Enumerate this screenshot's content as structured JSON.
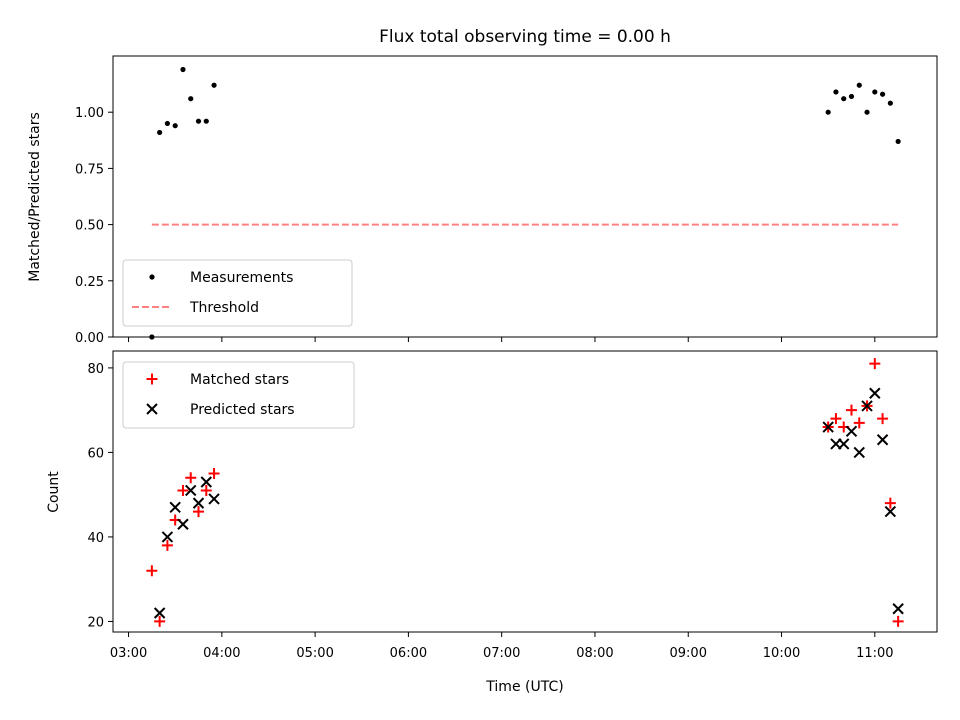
{
  "chart_data": [
    {
      "type": "scatter",
      "title": "Flux total observing time = 0.00 h",
      "xlabel": "",
      "ylabel": "Matched/Predicted stars",
      "xlim": [
        "02:50",
        "11:40"
      ],
      "ylim": [
        0,
        1.25
      ],
      "x_ticks": [
        "03:00",
        "04:00",
        "05:00",
        "06:00",
        "07:00",
        "08:00",
        "09:00",
        "10:00",
        "11:00"
      ],
      "y_ticks": [
        "0.00",
        "0.25",
        "0.50",
        "0.75",
        "1.00"
      ],
      "series": [
        {
          "name": "Measurements",
          "marker": "dot",
          "color": "#000000",
          "points": [
            [
              "03:15",
              0.0
            ],
            [
              "03:20",
              0.91
            ],
            [
              "03:25",
              0.95
            ],
            [
              "03:30",
              0.94
            ],
            [
              "03:35",
              1.19
            ],
            [
              "03:40",
              1.06
            ],
            [
              "03:45",
              0.96
            ],
            [
              "03:50",
              0.96
            ],
            [
              "03:55",
              1.12
            ],
            [
              "10:30",
              1.0
            ],
            [
              "10:35",
              1.09
            ],
            [
              "10:40",
              1.06
            ],
            [
              "10:45",
              1.07
            ],
            [
              "10:50",
              1.12
            ],
            [
              "10:55",
              1.0
            ],
            [
              "11:00",
              1.09
            ],
            [
              "11:05",
              1.08
            ],
            [
              "11:10",
              1.04
            ],
            [
              "11:15",
              0.87
            ]
          ]
        },
        {
          "name": "Threshold",
          "marker": "dashed-line",
          "color": "#ff8080",
          "points": [
            [
              "03:15",
              0.5
            ],
            [
              "11:15",
              0.5
            ]
          ]
        }
      ],
      "legend": {
        "position": "lower-left",
        "entries": [
          "Measurements",
          "Threshold"
        ]
      }
    },
    {
      "type": "scatter",
      "title": "",
      "xlabel": "Time (UTC)",
      "ylabel": "Count",
      "xlim": [
        "02:50",
        "11:40"
      ],
      "ylim": [
        17.5,
        84
      ],
      "x_ticks": [
        "03:00",
        "04:00",
        "05:00",
        "06:00",
        "07:00",
        "08:00",
        "09:00",
        "10:00",
        "11:00"
      ],
      "y_ticks": [
        "20",
        "40",
        "60",
        "80"
      ],
      "series": [
        {
          "name": "Matched stars",
          "marker": "plus",
          "color": "#ff0000",
          "points": [
            [
              "03:15",
              32
            ],
            [
              "03:20",
              20
            ],
            [
              "03:25",
              38
            ],
            [
              "03:30",
              44
            ],
            [
              "03:35",
              51
            ],
            [
              "03:40",
              54
            ],
            [
              "03:45",
              46
            ],
            [
              "03:50",
              51
            ],
            [
              "03:55",
              55
            ],
            [
              "10:30",
              66
            ],
            [
              "10:35",
              68
            ],
            [
              "10:40",
              66
            ],
            [
              "10:45",
              70
            ],
            [
              "10:50",
              67
            ],
            [
              "10:55",
              71
            ],
            [
              "11:00",
              81
            ],
            [
              "11:05",
              68
            ],
            [
              "11:10",
              48
            ],
            [
              "11:15",
              20
            ]
          ]
        },
        {
          "name": "Predicted stars",
          "marker": "x",
          "color": "#000000",
          "points": [
            [
              "03:20",
              22
            ],
            [
              "03:25",
              40
            ],
            [
              "03:30",
              47
            ],
            [
              "03:35",
              43
            ],
            [
              "03:40",
              51
            ],
            [
              "03:45",
              48
            ],
            [
              "03:50",
              53
            ],
            [
              "03:55",
              49
            ],
            [
              "10:30",
              66
            ],
            [
              "10:35",
              62
            ],
            [
              "10:40",
              62
            ],
            [
              "10:45",
              65
            ],
            [
              "10:50",
              60
            ],
            [
              "10:55",
              71
            ],
            [
              "11:00",
              74
            ],
            [
              "11:05",
              63
            ],
            [
              "11:10",
              46
            ],
            [
              "11:15",
              23
            ]
          ]
        }
      ],
      "legend": {
        "position": "upper-left",
        "entries": [
          "Matched stars",
          "Predicted stars"
        ]
      }
    }
  ]
}
